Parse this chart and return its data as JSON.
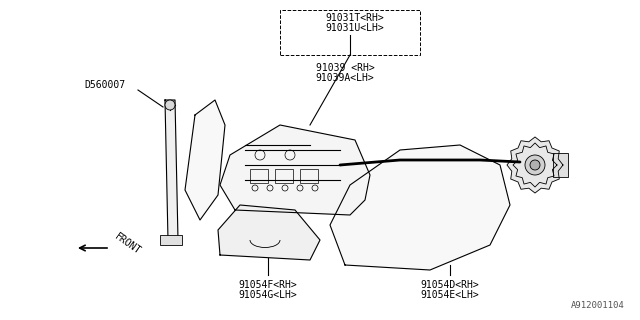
{
  "background_color": "#ffffff",
  "line_color": "#000000",
  "title_color": "#000000",
  "part_numbers": {
    "top_outer": [
      "91031T<RH>",
      "91031U<LH>"
    ],
    "top_inner": [
      "91039 <RH>",
      "91039A<LH>"
    ],
    "bottom_left": [
      "91054F<RH>",
      "91054G<LH>"
    ],
    "bottom_right": [
      "91054D<RH>",
      "91054E<LH>"
    ],
    "left_part": "D560007"
  },
  "corner_text": "A912001104",
  "front_label": "FRONT",
  "font_size_labels": 7,
  "font_size_corner": 6.5,
  "figsize": [
    6.4,
    3.2
  ],
  "dpi": 100
}
